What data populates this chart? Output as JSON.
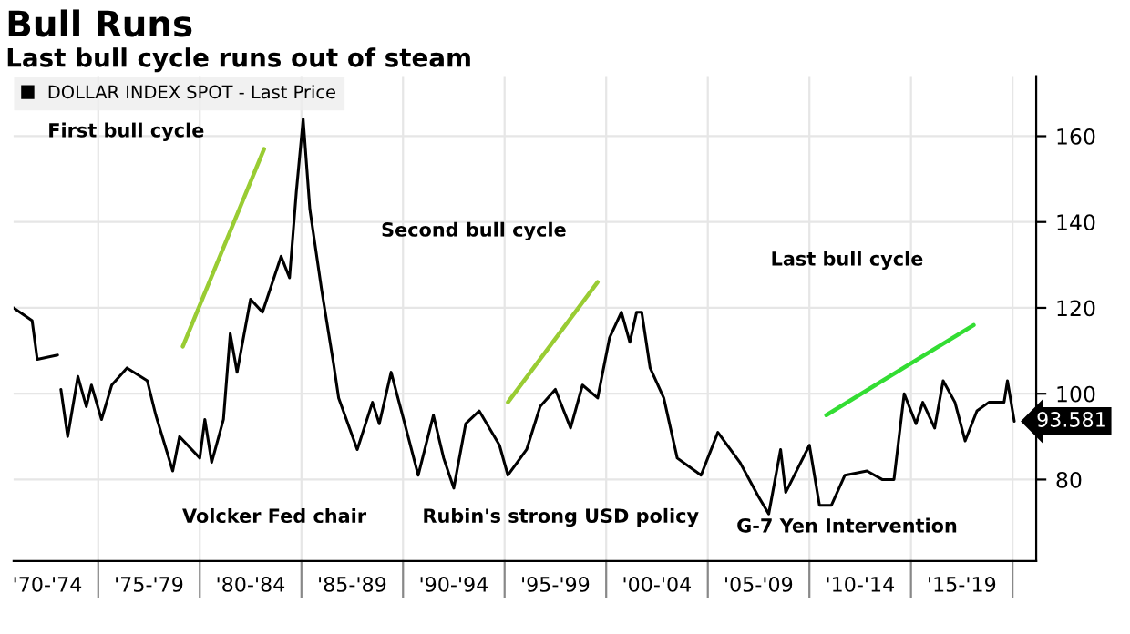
{
  "chart_data": {
    "type": "line",
    "title": "Bull Runs",
    "subtitle": "Last bull cycle runs out of steam",
    "x": [
      "1970-11",
      "1971-10",
      "1972-01",
      "1973-01",
      "1973-02",
      "1973-03",
      "1973-07",
      "1974-01",
      "1974-06",
      "1974-09",
      "1975-03",
      "1975-09",
      "1976-06",
      "1977-06",
      "1977-11",
      "1978-09",
      "1979-01",
      "1980-01",
      "1980-04",
      "1980-08",
      "1981-03",
      "1981-07",
      "1981-11",
      "1982-07",
      "1983-02",
      "1984-01",
      "1984-06",
      "1984-10",
      "1985-02",
      "1985-06",
      "1986-01",
      "1986-08",
      "1986-11",
      "1987-10",
      "1988-07",
      "1988-11",
      "1989-06",
      "1990-02",
      "1990-10",
      "1991-07",
      "1992-01",
      "1992-07",
      "1993-02",
      "1993-10",
      "1994-10",
      "1995-03",
      "1996-02",
      "1996-10",
      "1997-07",
      "1998-04",
      "1998-11",
      "1999-08",
      "2000-03",
      "2000-10",
      "2001-03",
      "2001-07",
      "2001-10",
      "2002-03",
      "2002-11",
      "2003-07",
      "2004-09",
      "2005-07",
      "2006-08",
      "2007-07",
      "2008-01",
      "2008-08",
      "2008-11",
      "2010-01",
      "2010-07",
      "2011-02",
      "2011-10",
      "2012-11",
      "2013-08",
      "2014-03",
      "2014-09",
      "2015-04",
      "2015-08",
      "2016-03",
      "2016-08",
      "2017-03",
      "2017-09",
      "2018-04",
      "2018-11",
      "2019-08",
      "2019-10",
      "2020-02"
    ],
    "series": [
      {
        "name": "DOLLAR INDEX SPOT - Last Price",
        "color": "#000000",
        "values": [
          120,
          117,
          108,
          109,
          null,
          101,
          90,
          104,
          97,
          102,
          94,
          102,
          106,
          103,
          95,
          82,
          90,
          85,
          94,
          84,
          94,
          114,
          105,
          122,
          119,
          132,
          127,
          147,
          164,
          143,
          124,
          107,
          99,
          87,
          98,
          93,
          105,
          93,
          81,
          95,
          85,
          78,
          93,
          96,
          88,
          81,
          87,
          97,
          101,
          92,
          102,
          99,
          113,
          119,
          112,
          119,
          119,
          106,
          99,
          85,
          81,
          91,
          84,
          76,
          72,
          87,
          77,
          88,
          74,
          74,
          81,
          82,
          80,
          80,
          100,
          93,
          98,
          92,
          103,
          98,
          89,
          96,
          98,
          98,
          103,
          93.581
        ],
        "value_labels": [
          null,
          null,
          null,
          null,
          null,
          null,
          null,
          null,
          null,
          null,
          null,
          null,
          null,
          null,
          null,
          null,
          null,
          null,
          null,
          null,
          null,
          null,
          null,
          null,
          null,
          null,
          null,
          null,
          null,
          null,
          null,
          null,
          null,
          null,
          null,
          null,
          null,
          null,
          null,
          null,
          null,
          null,
          null,
          null,
          null,
          null,
          null,
          null,
          null,
          null,
          null,
          null,
          null,
          null,
          null,
          null,
          null,
          null,
          null,
          null,
          null,
          null,
          null,
          null,
          null,
          null,
          null,
          null,
          null,
          null,
          null,
          null,
          null,
          null,
          null,
          null,
          null,
          null,
          null,
          null,
          null,
          null,
          null,
          null,
          null,
          "93.581"
        ]
      },
      {
        "type": "line",
        "color": "#99cc33",
        "x": [
          "1979-03",
          "1983-03"
        ],
        "values": [
          111,
          157
        ]
      },
      {
        "type": "line",
        "color": "#99cc33",
        "x": [
          "1995-03",
          "1999-08"
        ],
        "values": [
          98,
          126
        ]
      },
      {
        "type": "line",
        "color": "#33dd33",
        "x": [
          "2010-11",
          "2018-02"
        ],
        "values": [
          95,
          116
        ]
      }
    ],
    "xlim": [
      "1970-11",
      "2021-03"
    ],
    "xticks": [
      {
        "value": "1972-07",
        "label": "'70-'74"
      },
      {
        "value": "1975-01",
        "label": null
      },
      {
        "value": "1977-07",
        "label": "'75-'79"
      },
      {
        "value": "1980-01",
        "label": null
      },
      {
        "value": "1982-07",
        "label": "'80-'84"
      },
      {
        "value": "1985-01",
        "label": null
      },
      {
        "value": "1987-07",
        "label": "'85-'89"
      },
      {
        "value": "1990-01",
        "label": null
      },
      {
        "value": "1992-07",
        "label": "'90-'94"
      },
      {
        "value": "1995-01",
        "label": null
      },
      {
        "value": "1997-07",
        "label": "'95-'99"
      },
      {
        "value": "2000-01",
        "label": null
      },
      {
        "value": "2002-07",
        "label": "'00-'04"
      },
      {
        "value": "2005-01",
        "label": null
      },
      {
        "value": "2007-07",
        "label": "'05-'09"
      },
      {
        "value": "2010-01",
        "label": null
      },
      {
        "value": "2012-07",
        "label": "'10-'14"
      },
      {
        "value": "2015-01",
        "label": null
      },
      {
        "value": "2017-07",
        "label": "'15-'19"
      },
      {
        "value": "2020-01",
        "label": null
      }
    ],
    "ylim": [
      61,
      174
    ],
    "yticks": [
      80,
      100,
      120,
      140,
      160
    ],
    "grid": true,
    "legend": "top left",
    "annotations": [
      "First bull cycle",
      "Second bull cycle",
      "Last bull cycle",
      "Volcker Fed chair",
      "Rubin's strong USD policy",
      "G-7 Yen Intervention"
    ]
  }
}
